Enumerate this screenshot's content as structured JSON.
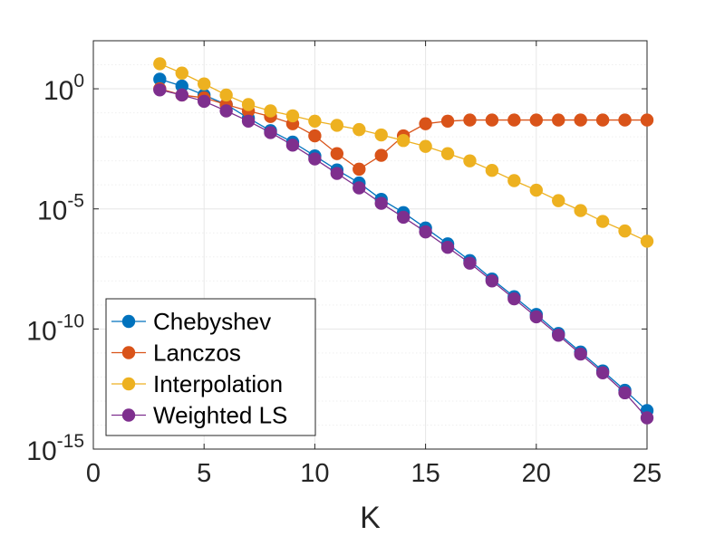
{
  "chart_data": {
    "type": "line",
    "title": "",
    "xlabel": "K",
    "ylabel": "",
    "xlim": [
      0,
      25
    ],
    "ylim_log10": [
      -15,
      2
    ],
    "yscale": "log",
    "grid": true,
    "legend_position": "bottom-left",
    "x_ticks": [
      0,
      5,
      10,
      15,
      20,
      25
    ],
    "y_ticks": [
      {
        "base": "10",
        "exp": "0"
      },
      {
        "base": "10",
        "exp": "-5"
      },
      {
        "base": "10",
        "exp": "-10"
      },
      {
        "base": "10",
        "exp": "-15"
      }
    ],
    "x": [
      3,
      4,
      5,
      6,
      7,
      8,
      9,
      10,
      11,
      12,
      13,
      14,
      15,
      16,
      17,
      18,
      19,
      20,
      21,
      22,
      23,
      24,
      25
    ],
    "series": [
      {
        "name": "Chebyshev",
        "color": "#0072BD",
        "values": [
          2.5,
          1.3,
          0.55,
          0.22,
          0.06,
          0.018,
          0.006,
          0.0016,
          0.00042,
          0.00012,
          2.5e-05,
          7e-06,
          1.6e-06,
          3.5e-07,
          7e-08,
          1.2e-08,
          2.2e-09,
          4e-10,
          6.5e-11,
          1.1e-11,
          1.8e-12,
          2.8e-13,
          4e-14
        ]
      },
      {
        "name": "Lanczos",
        "color": "#D95319",
        "values": [
          1.0,
          0.55,
          0.42,
          0.22,
          0.12,
          0.07,
          0.035,
          0.011,
          0.002,
          0.00045,
          0.0017,
          0.011,
          0.035,
          0.045,
          0.05,
          0.05,
          0.05,
          0.05,
          0.05,
          0.05,
          0.05,
          0.05,
          0.05
        ]
      },
      {
        "name": "Interpolation",
        "color": "#EDB120",
        "values": [
          11,
          4.5,
          1.6,
          0.55,
          0.22,
          0.12,
          0.075,
          0.045,
          0.03,
          0.02,
          0.012,
          0.007,
          0.004,
          0.002,
          0.001,
          0.0004,
          0.00015,
          6e-05,
          2.2e-05,
          8.5e-06,
          3e-06,
          1.2e-06,
          4.5e-07
        ]
      },
      {
        "name": "Weighted LS",
        "color": "#7E2F8E",
        "values": [
          0.9,
          0.55,
          0.3,
          0.12,
          0.045,
          0.015,
          0.0045,
          0.0012,
          0.0003,
          7.5e-05,
          1.7e-05,
          4.5e-06,
          1.1e-06,
          2.5e-07,
          5.5e-08,
          1e-08,
          1.8e-09,
          3.2e-10,
          5.5e-11,
          9e-12,
          1.5e-12,
          2.2e-13,
          2e-14
        ]
      }
    ]
  }
}
